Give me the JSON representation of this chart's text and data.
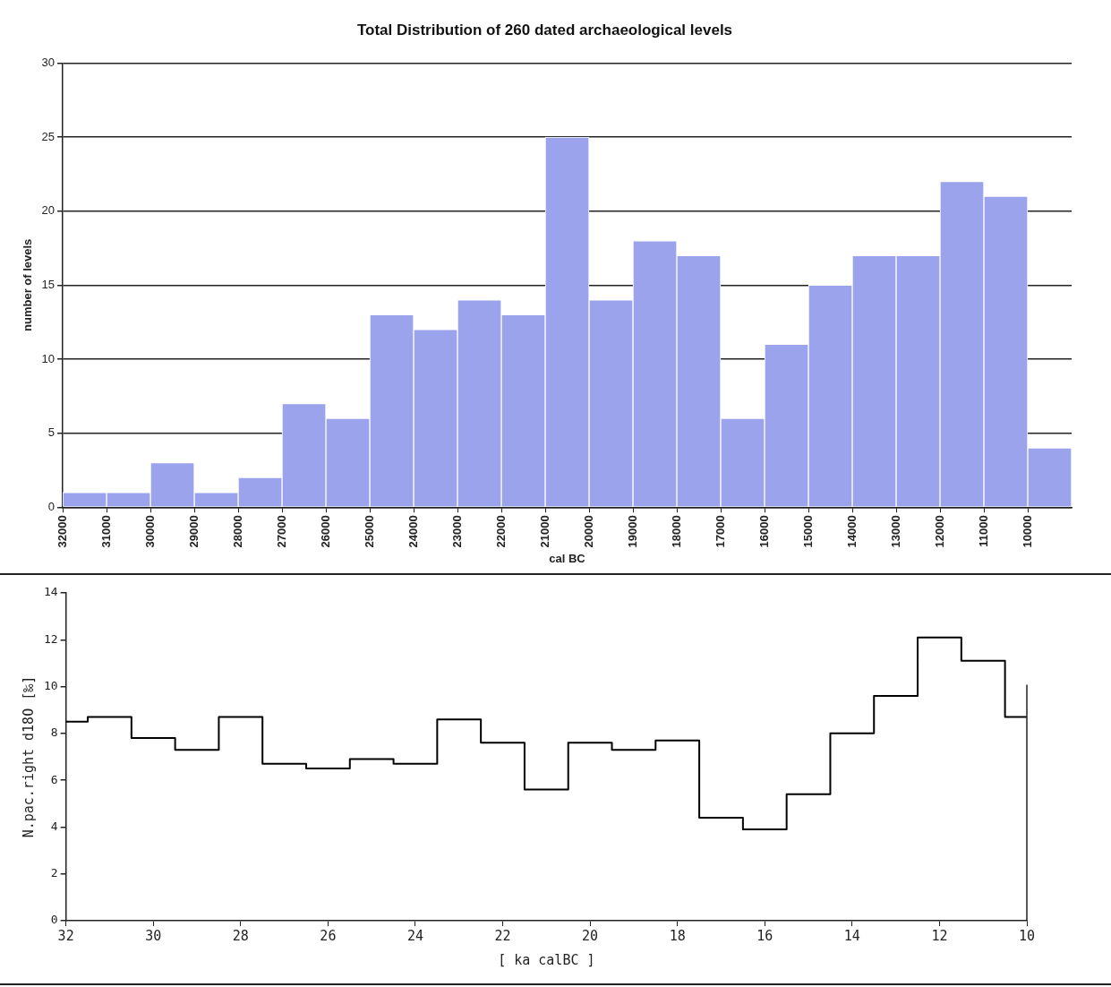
{
  "chart_data": [
    {
      "type": "histogram",
      "title": "Total Distribution of 260 dated archaeological levels",
      "xlabel": "cal BC",
      "ylabel": "number of levels",
      "bins": [
        32000,
        31000,
        30000,
        29000,
        28000,
        27000,
        26000,
        25000,
        24000,
        23000,
        22000,
        21000,
        20000,
        19000,
        18000,
        17000,
        16000,
        15000,
        14000,
        13000,
        12000,
        11000,
        10000,
        9000
      ],
      "values": [
        1,
        1,
        3,
        1,
        2,
        7,
        6,
        13,
        12,
        14,
        13,
        25,
        14,
        18,
        17,
        6,
        11,
        15,
        17,
        17,
        22,
        21,
        4
      ],
      "color": "#9ba3ec",
      "xlim": [
        32000,
        9000
      ],
      "xticks": [
        32000,
        31000,
        30000,
        29000,
        28000,
        27000,
        26000,
        25000,
        24000,
        23000,
        22000,
        21000,
        20000,
        19000,
        18000,
        17000,
        16000,
        15000,
        14000,
        13000,
        12000,
        11000,
        10000
      ],
      "ylim": [
        0,
        30
      ],
      "yticks": [
        0,
        5,
        10,
        15,
        20,
        25,
        30
      ],
      "grid": "y"
    },
    {
      "type": "step",
      "xlabel": "[ ka calBC ]",
      "ylabel": "N.pac.right d18O [‰]",
      "x": [
        32,
        31.5,
        30.5,
        29.5,
        28.5,
        27.5,
        26.5,
        25.5,
        24.5,
        23.5,
        22.5,
        21.5,
        20.5,
        19.5,
        18.5,
        17.5,
        16.5,
        15.5,
        14.5,
        13.5,
        12.5,
        11.5,
        10.5,
        10
      ],
      "values": [
        8.5,
        8.5,
        8.7,
        7.8,
        7.3,
        8.7,
        6.7,
        6.5,
        6.9,
        6.7,
        8.6,
        7.6,
        5.6,
        7.6,
        7.3,
        7.7,
        4.4,
        3.9,
        5.4,
        8.0,
        9.6,
        12.1,
        11.1,
        8.7
      ],
      "color": "#000000",
      "xlim": [
        32,
        10
      ],
      "xticks": [
        32,
        30,
        28,
        26,
        24,
        22,
        20,
        18,
        16,
        14,
        12,
        10
      ],
      "ylim": [
        0,
        14
      ],
      "yticks": [
        0,
        2,
        4,
        6,
        8,
        10,
        12,
        14
      ]
    }
  ]
}
